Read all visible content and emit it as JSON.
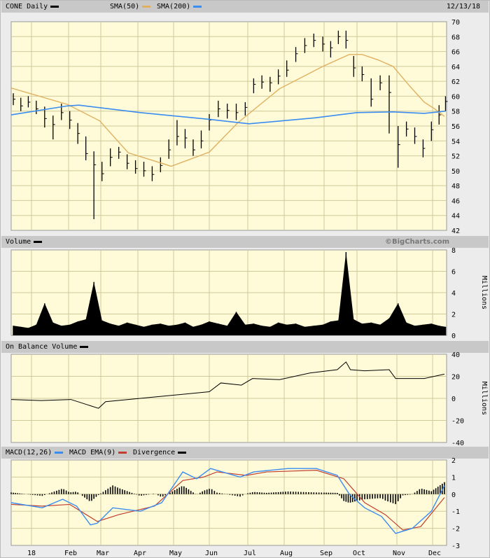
{
  "colors": {
    "plot_bg": "#fffbd8",
    "grid": "#cfc99a",
    "price": "#000000",
    "sma50": "#e0b060",
    "sma200": "#3a8cf0",
    "macd": "#3a8cf0",
    "ema": "#c04030",
    "divergence": "#000000",
    "volume": "#000000"
  },
  "header": {
    "symbol_label": "CONE Daily",
    "sma50_label": "SMA(50)",
    "sma200_label": "SMA(200)",
    "date": "12/13/18"
  },
  "volume_header": {
    "label": "Volume",
    "credit": "©BigCharts.com"
  },
  "obv_header": {
    "label": "On Balance Volume"
  },
  "macd_header": {
    "macd_label": "MACD(12,26)",
    "ema_label": "MACD EMA(9)",
    "div_label": "Divergence"
  },
  "chart_data": [
    {
      "type": "bar",
      "panel": "price",
      "title": "CONE Daily",
      "ylim": [
        42,
        70
      ],
      "yticks": [
        42,
        44,
        46,
        48,
        50,
        52,
        54,
        56,
        58,
        60,
        62,
        64,
        66,
        68,
        70
      ],
      "xticks": [
        {
          "date": "2018-01-01",
          "label": "18"
        },
        {
          "date": "2018-02-01",
          "label": "Feb"
        },
        {
          "date": "2018-03-01",
          "label": "Mar"
        },
        {
          "date": "2018-04-01",
          "label": "Apr"
        },
        {
          "date": "2018-05-01",
          "label": "May"
        },
        {
          "date": "2018-06-01",
          "label": "Jun"
        },
        {
          "date": "2018-07-01",
          "label": "Jul"
        },
        {
          "date": "2018-08-01",
          "label": "Aug"
        },
        {
          "date": "2018-09-01",
          "label": "Sep"
        },
        {
          "date": "2018-10-01",
          "label": "Oct"
        },
        {
          "date": "2018-11-01",
          "label": "Nov"
        },
        {
          "date": "2018-12-01",
          "label": "Dec"
        }
      ],
      "grid": true,
      "bars_low_high_close": [
        [
          "2017-12-15",
          58.8,
          60.4,
          59.6
        ],
        [
          "2017-12-22",
          58.0,
          59.8,
          58.7
        ],
        [
          "2017-12-29",
          58.5,
          60.0,
          59.2
        ],
        [
          "2018-01-05",
          57.6,
          59.4,
          58.3
        ],
        [
          "2018-01-12",
          55.8,
          58.6,
          57.0
        ],
        [
          "2018-01-19",
          54.2,
          57.4,
          56.2
        ],
        [
          "2018-01-26",
          56.8,
          59.0,
          57.8
        ],
        [
          "2018-02-02",
          55.6,
          58.0,
          56.8
        ],
        [
          "2018-02-09",
          53.6,
          56.4,
          55.0
        ],
        [
          "2018-02-16",
          51.4,
          54.6,
          52.3
        ],
        [
          "2018-02-23",
          43.5,
          52.6,
          50.8
        ],
        [
          "2018-03-02",
          48.6,
          51.2,
          49.6
        ],
        [
          "2018-03-09",
          50.6,
          53.0,
          51.8
        ],
        [
          "2018-03-16",
          51.6,
          53.2,
          52.5
        ],
        [
          "2018-03-23",
          50.2,
          52.2,
          51.0
        ],
        [
          "2018-03-30",
          49.6,
          51.4,
          50.3
        ],
        [
          "2018-04-06",
          49.2,
          51.2,
          50.0
        ],
        [
          "2018-04-13",
          48.6,
          50.6,
          49.5
        ],
        [
          "2018-04-20",
          49.8,
          51.8,
          50.7
        ],
        [
          "2018-04-27",
          51.6,
          54.2,
          52.8
        ],
        [
          "2018-05-04",
          53.4,
          56.8,
          54.6
        ],
        [
          "2018-05-11",
          53.0,
          55.6,
          54.4
        ],
        [
          "2018-05-18",
          52.0,
          54.2,
          52.8
        ],
        [
          "2018-05-25",
          53.0,
          55.4,
          54.0
        ],
        [
          "2018-06-01",
          55.4,
          57.6,
          56.8
        ],
        [
          "2018-06-08",
          57.2,
          59.4,
          58.3
        ],
        [
          "2018-06-15",
          57.0,
          59.0,
          58.1
        ],
        [
          "2018-06-22",
          56.8,
          59.0,
          57.8
        ],
        [
          "2018-06-29",
          57.4,
          59.2,
          58.5
        ],
        [
          "2018-07-06",
          60.4,
          62.4,
          61.6
        ],
        [
          "2018-07-13",
          61.0,
          62.8,
          61.9
        ],
        [
          "2018-07-20",
          60.6,
          62.6,
          61.8
        ],
        [
          "2018-07-27",
          61.6,
          63.6,
          62.7
        ],
        [
          "2018-08-03",
          62.6,
          64.8,
          63.5
        ],
        [
          "2018-08-10",
          64.6,
          66.6,
          65.7
        ],
        [
          "2018-08-17",
          65.8,
          67.8,
          66.8
        ],
        [
          "2018-08-24",
          66.6,
          68.4,
          67.5
        ],
        [
          "2018-08-31",
          66.0,
          68.0,
          67.0
        ],
        [
          "2018-09-07",
          65.2,
          67.4,
          66.5
        ],
        [
          "2018-09-14",
          67.0,
          68.8,
          68.0
        ],
        [
          "2018-09-21",
          66.4,
          68.8,
          67.5
        ],
        [
          "2018-09-28",
          62.6,
          65.4,
          63.8
        ],
        [
          "2018-10-05",
          62.0,
          64.0,
          62.9
        ],
        [
          "2018-10-12",
          58.6,
          62.4,
          59.6
        ],
        [
          "2018-10-19",
          60.8,
          62.8,
          61.8
        ],
        [
          "2018-10-26",
          55.0,
          62.8,
          60.5
        ],
        [
          "2018-11-02",
          50.4,
          56.0,
          53.5
        ],
        [
          "2018-11-09",
          54.6,
          56.6,
          55.6
        ],
        [
          "2018-11-16",
          53.6,
          55.8,
          54.6
        ],
        [
          "2018-11-23",
          51.8,
          54.2,
          53.0
        ],
        [
          "2018-11-30",
          54.0,
          56.6,
          55.5
        ],
        [
          "2018-12-07",
          56.2,
          58.8,
          57.5
        ],
        [
          "2018-12-13",
          58.0,
          60.0,
          59.3
        ]
      ],
      "sma50": [
        [
          "2017-12-13",
          61.1
        ],
        [
          "2018-01-31",
          58.9
        ],
        [
          "2018-02-28",
          56.7
        ],
        [
          "2018-03-24",
          52.4
        ],
        [
          "2018-04-29",
          50.6
        ],
        [
          "2018-06-01",
          52.5
        ],
        [
          "2018-06-23",
          56.4
        ],
        [
          "2018-07-28",
          61.0
        ],
        [
          "2018-08-31",
          64.0
        ],
        [
          "2018-09-24",
          65.6
        ],
        [
          "2018-10-05",
          65.6
        ],
        [
          "2018-10-17",
          64.9
        ],
        [
          "2018-10-29",
          64.0
        ],
        [
          "2018-11-11",
          61.5
        ],
        [
          "2018-11-24",
          59.2
        ],
        [
          "2018-12-03",
          58.3
        ],
        [
          "2018-12-12",
          57.3
        ]
      ],
      "sma200": [
        [
          "2017-12-13",
          57.5
        ],
        [
          "2018-01-31",
          58.7
        ],
        [
          "2018-02-10",
          58.8
        ],
        [
          "2018-04-03",
          57.8
        ],
        [
          "2018-06-01",
          56.9
        ],
        [
          "2018-07-02",
          56.3
        ],
        [
          "2018-08-25",
          57.1
        ],
        [
          "2018-10-01",
          57.8
        ],
        [
          "2018-10-29",
          57.9
        ],
        [
          "2018-11-24",
          57.7
        ],
        [
          "2018-12-13",
          58.0
        ]
      ]
    },
    {
      "type": "area",
      "panel": "volume",
      "ylabel": "Millions",
      "ylim": [
        0,
        8
      ],
      "yticks": [
        0,
        2,
        4,
        6,
        8
      ],
      "grid": true,
      "values": [
        0.9,
        0.8,
        0.7,
        1.0,
        3.0,
        1.2,
        0.9,
        1.0,
        1.3,
        1.5,
        5.0,
        1.4,
        1.1,
        0.9,
        1.2,
        1.0,
        0.8,
        1.0,
        1.1,
        0.9,
        1.0,
        1.2,
        0.8,
        1.0,
        1.3,
        1.1,
        0.9,
        2.2,
        1.0,
        1.1,
        0.9,
        0.8,
        1.2,
        1.0,
        1.1,
        0.8,
        0.9,
        1.0,
        1.3,
        1.4,
        7.8,
        1.5,
        1.1,
        1.2,
        1.0,
        1.6,
        3.0,
        1.2,
        0.9,
        1.0,
        1.1,
        0.9,
        0.8
      ]
    },
    {
      "type": "line",
      "panel": "obv",
      "title": "On Balance Volume",
      "ylabel": "Millions",
      "ylim": [
        -40,
        40
      ],
      "yticks": [
        -40,
        -20,
        0,
        20,
        40
      ],
      "grid": true,
      "points": [
        [
          "2017-12-13",
          -1
        ],
        [
          "2018-01-09",
          -2
        ],
        [
          "2018-02-03",
          -1
        ],
        [
          "2018-02-27",
          -9
        ],
        [
          "2018-03-05",
          -3
        ],
        [
          "2018-05-02",
          3
        ],
        [
          "2018-06-01",
          6
        ],
        [
          "2018-06-10",
          14
        ],
        [
          "2018-06-26",
          12
        ],
        [
          "2018-07-05",
          18
        ],
        [
          "2018-07-28",
          17
        ],
        [
          "2018-08-21",
          23
        ],
        [
          "2018-09-13",
          26
        ],
        [
          "2018-09-21",
          33
        ],
        [
          "2018-09-25",
          26
        ],
        [
          "2018-10-07",
          25
        ],
        [
          "2018-10-26",
          26
        ],
        [
          "2018-10-31",
          18
        ],
        [
          "2018-11-24",
          18
        ],
        [
          "2018-12-12",
          22
        ]
      ]
    },
    {
      "type": "line",
      "panel": "macd",
      "ylim": [
        -3,
        2
      ],
      "yticks": [
        -3,
        -2,
        -1,
        0,
        1,
        2
      ],
      "grid": true,
      "series": [
        {
          "name": "MACD(12,26)",
          "points": [
            [
              "2017-12-13",
              -0.5
            ],
            [
              "2018-01-10",
              -0.8
            ],
            [
              "2018-01-27",
              -0.3
            ],
            [
              "2018-02-08",
              -0.7
            ],
            [
              "2018-02-20",
              -1.8
            ],
            [
              "2018-02-26",
              -1.7
            ],
            [
              "2018-03-11",
              -0.8
            ],
            [
              "2018-04-03",
              -1.0
            ],
            [
              "2018-04-21",
              -0.5
            ],
            [
              "2018-05-09",
              1.3
            ],
            [
              "2018-05-21",
              0.9
            ],
            [
              "2018-06-02",
              1.5
            ],
            [
              "2018-06-25",
              1.0
            ],
            [
              "2018-07-06",
              1.3
            ],
            [
              "2018-08-04",
              1.5
            ],
            [
              "2018-08-26",
              1.5
            ],
            [
              "2018-09-13",
              1.1
            ],
            [
              "2018-09-24",
              0.0
            ],
            [
              "2018-10-07",
              -0.8
            ],
            [
              "2018-10-20",
              -1.3
            ],
            [
              "2018-10-31",
              -2.3
            ],
            [
              "2018-11-14",
              -2.0
            ],
            [
              "2018-11-30",
              -1.0
            ],
            [
              "2018-12-12",
              0.5
            ]
          ]
        },
        {
          "name": "MACD EMA(9)",
          "points": [
            [
              "2017-12-13",
              -0.6
            ],
            [
              "2018-01-10",
              -0.7
            ],
            [
              "2018-02-02",
              -0.6
            ],
            [
              "2018-02-26",
              -1.6
            ],
            [
              "2018-03-16",
              -1.2
            ],
            [
              "2018-04-15",
              -0.7
            ],
            [
              "2018-05-09",
              0.8
            ],
            [
              "2018-05-27",
              1.0
            ],
            [
              "2018-06-07",
              1.3
            ],
            [
              "2018-06-30",
              1.1
            ],
            [
              "2018-07-17",
              1.3
            ],
            [
              "2018-08-26",
              1.4
            ],
            [
              "2018-09-19",
              0.9
            ],
            [
              "2018-10-07",
              -0.5
            ],
            [
              "2018-10-23",
              -1.2
            ],
            [
              "2018-11-06",
              -2.1
            ],
            [
              "2018-11-21",
              -1.9
            ],
            [
              "2018-12-12",
              -0.2
            ]
          ]
        }
      ]
    }
  ]
}
